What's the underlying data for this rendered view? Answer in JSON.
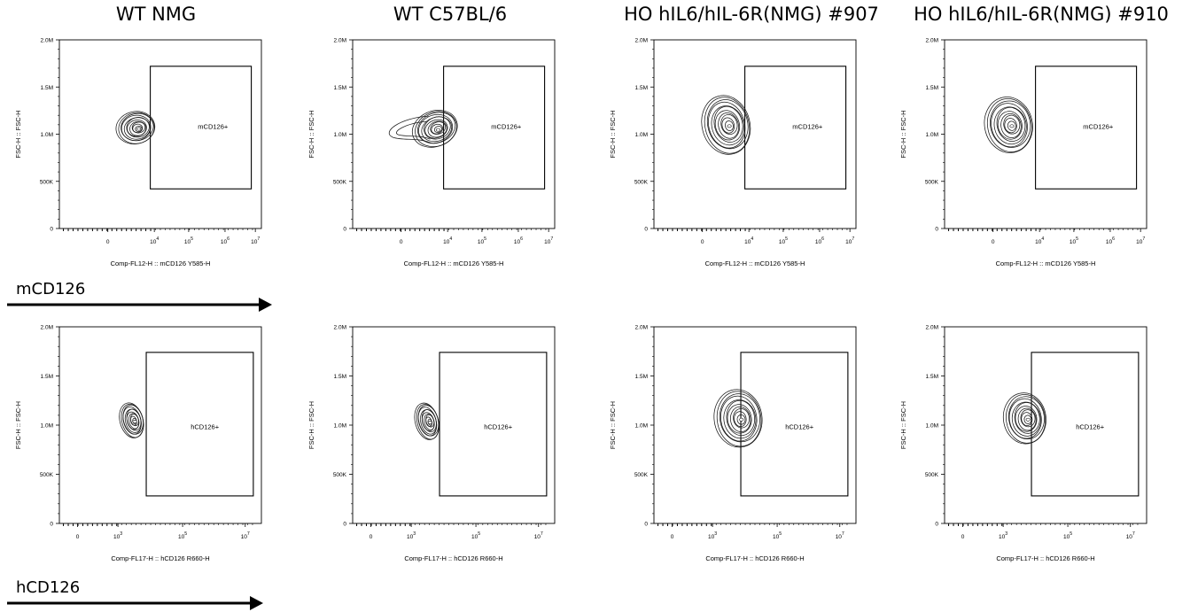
{
  "columns": [
    {
      "title": "WT NMG"
    },
    {
      "title": "WT C57BL/6"
    },
    {
      "title": "HO hIL6/hIL-6R(NMG) #907"
    },
    {
      "title": "HO hIL6/hIL-6R(NMG) #910"
    }
  ],
  "rows": [
    {
      "marker": "mCD126"
    },
    {
      "marker": "hCD126"
    }
  ],
  "chart_data": [
    {
      "type": "contour",
      "row": 0,
      "col": 0,
      "title": "WT NMG",
      "xlabel": "Comp-FL12-H :: mCD126 Y585-H",
      "ylabel": "FSC-H :: FSC-H",
      "xticks": [
        "0",
        "10^4",
        "10^5",
        "10^6",
        "10^7"
      ],
      "yticks": [
        "0",
        "500K",
        "1.0M",
        "1.5M",
        "2.0M"
      ],
      "ylim": [
        0,
        2000000
      ],
      "gate": {
        "label": "mCD126+",
        "x_start": "~10^3.9",
        "x_end": "~10^6.9",
        "y_start": 420000,
        "y_end": 1700000
      },
      "population": {
        "x_center": "~10^3.6",
        "y_center": 1030000,
        "y_spread": 110000
      }
    },
    {
      "type": "contour",
      "row": 0,
      "col": 1,
      "title": "WT C57BL/6",
      "xlabel": "Comp-FL12-H :: mCD126 Y585-H",
      "ylabel": "FSC-H :: FSC-H",
      "xticks": [
        "0",
        "10^4",
        "10^5",
        "10^6",
        "10^7"
      ],
      "yticks": [
        "0",
        "500K",
        "1.0M",
        "1.5M",
        "2.0M"
      ],
      "ylim": [
        0,
        2000000
      ],
      "gate": {
        "label": "mCD126+",
        "x_start": "~10^3.9",
        "x_end": "~10^6.9",
        "y_start": 420000,
        "y_end": 1700000
      },
      "population": {
        "x_center": "~10^3.8",
        "y_center": 1020000,
        "y_spread": 130000
      }
    },
    {
      "type": "contour",
      "row": 0,
      "col": 2,
      "title": "HO hIL6/hIL-6R(NMG) #907",
      "xlabel": "Comp-FL12-H :: mCD126 Y585-H",
      "ylabel": "FSC-H :: FSC-H",
      "xticks": [
        "0",
        "10^4",
        "10^5",
        "10^6",
        "10^7"
      ],
      "yticks": [
        "0",
        "500K",
        "1.0M",
        "1.5M",
        "2.0M"
      ],
      "ylim": [
        0,
        2000000
      ],
      "gate": {
        "label": "mCD126+",
        "x_start": "~10^3.9",
        "x_end": "~10^6.9",
        "y_start": 420000,
        "y_end": 1700000
      },
      "population": {
        "x_center": "~10^3.5",
        "y_center": 1070000,
        "y_spread": 200000
      }
    },
    {
      "type": "contour",
      "row": 0,
      "col": 3,
      "title": "HO hIL6/hIL-6R(NMG) #910",
      "xlabel": "Comp-FL12-H :: mCD126 Y585-H",
      "ylabel": "FSC-H :: FSC-H",
      "xticks": [
        "0",
        "10^4",
        "10^5",
        "10^6",
        "10^7"
      ],
      "yticks": [
        "0",
        "500K",
        "1.0M",
        "1.5M",
        "2.0M"
      ],
      "ylim": [
        0,
        2000000
      ],
      "gate": {
        "label": "mCD126+",
        "x_start": "~10^3.9",
        "x_end": "~10^6.9",
        "y_start": 420000,
        "y_end": 1700000
      },
      "population": {
        "x_center": "~10^3.5",
        "y_center": 1070000,
        "y_spread": 180000
      }
    },
    {
      "type": "contour",
      "row": 1,
      "col": 0,
      "title": "WT NMG",
      "xlabel": "Comp-FL17-H :: hCD126 R660-H",
      "ylabel": "FSC-H :: FSC-H",
      "xticks": [
        "0",
        "10^3",
        "10^5",
        "10^7"
      ],
      "yticks": [
        "0",
        "500K",
        "1.0M",
        "1.5M",
        "2.0M"
      ],
      "ylim": [
        0,
        2000000
      ],
      "gate": {
        "label": "hCD126+",
        "x_start": "~10^3.8",
        "x_end": "~10^7",
        "y_start": 270000,
        "y_end": 1730000
      },
      "population": {
        "x_center": "~10^3.4",
        "y_center": 1040000,
        "y_spread": 150000
      }
    },
    {
      "type": "contour",
      "row": 1,
      "col": 1,
      "title": "WT C57BL/6",
      "xlabel": "Comp-FL17-H :: hCD126 R660-H",
      "ylabel": "FSC-H :: FSC-H",
      "xticks": [
        "0",
        "10^3",
        "10^5",
        "10^7"
      ],
      "yticks": [
        "0",
        "500K",
        "1.0M",
        "1.5M",
        "2.0M"
      ],
      "ylim": [
        0,
        2000000
      ],
      "gate": {
        "label": "hCD126+",
        "x_start": "~10^3.8",
        "x_end": "~10^7",
        "y_start": 270000,
        "y_end": 1730000
      },
      "population": {
        "x_center": "~10^3.4",
        "y_center": 1020000,
        "y_spread": 150000
      }
    },
    {
      "type": "contour",
      "row": 1,
      "col": 2,
      "title": "HO hIL6/hIL-6R(NMG) #907",
      "xlabel": "Comp-FL17-H :: hCD126 R660-H",
      "ylabel": "FSC-H :: FSC-H",
      "xticks": [
        "0",
        "10^3",
        "10^5",
        "10^7"
      ],
      "yticks": [
        "0",
        "500K",
        "1.0M",
        "1.5M",
        "2.0M"
      ],
      "ylim": [
        0,
        2000000
      ],
      "gate": {
        "label": "hCD126+",
        "x_start": "~10^3.8",
        "x_end": "~10^7",
        "y_start": 270000,
        "y_end": 1730000
      },
      "population": {
        "x_center": "~10^3.8",
        "y_center": 1070000,
        "y_spread": 220000
      }
    },
    {
      "type": "contour",
      "row": 1,
      "col": 3,
      "title": "HO hIL6/hIL-6R(NMG) #910",
      "xlabel": "Comp-FL17-H :: hCD126 R660-H",
      "ylabel": "FSC-H :: FSC-H",
      "xticks": [
        "0",
        "10^3",
        "10^5",
        "10^7"
      ],
      "yticks": [
        "0",
        "500K",
        "1.0M",
        "1.5M",
        "2.0M"
      ],
      "ylim": [
        0,
        2000000
      ],
      "gate": {
        "label": "hCD126+",
        "x_start": "~10^3.8",
        "x_end": "~10^7",
        "y_start": 270000,
        "y_end": 1730000
      },
      "population": {
        "x_center": "~10^3.8",
        "y_center": 1060000,
        "y_spread": 200000
      }
    }
  ]
}
